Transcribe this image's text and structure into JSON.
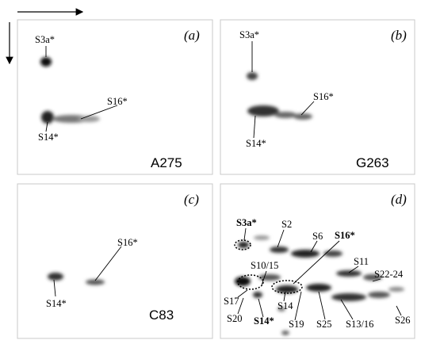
{
  "panels": [
    {
      "tag": "(a)",
      "sample": "A275",
      "labels": [
        "S3a*",
        "S14*",
        "S16*"
      ]
    },
    {
      "tag": "(b)",
      "sample": "G263",
      "labels": [
        "S3a*",
        "S16*",
        "S14*"
      ]
    },
    {
      "tag": "(c)",
      "sample": "C83",
      "labels": [
        "S16*",
        "S14*"
      ]
    },
    {
      "tag": "(d)",
      "labels": [
        "S3a*",
        "S2",
        "S6",
        "S16*",
        "S10/15",
        "S11",
        "S22-24",
        "S17",
        "S14",
        "S20",
        "S14*",
        "S19",
        "S25",
        "S13/16",
        "S26"
      ]
    }
  ]
}
